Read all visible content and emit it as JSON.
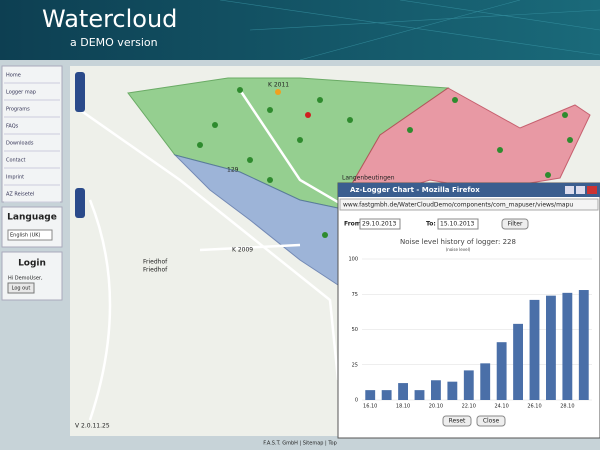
{
  "header": {
    "title": "Watercloud",
    "subtitle": "a DEMO version"
  },
  "menu": [
    "Home",
    "Logger map",
    "Programs",
    "FAQs",
    "Downloads",
    "Contact",
    "Imprint",
    "AZ Reisetel"
  ],
  "language": {
    "title": "Language",
    "selected": "English (UK)"
  },
  "login": {
    "title": "Login",
    "greeting": "Hi DemoUser,",
    "button": "Log out"
  },
  "map": {
    "labels": [
      "K 2011",
      "Langenbeutingen",
      "Friedhof",
      "Friedhof",
      "K 2009",
      "129"
    ],
    "version": "V 2.0.11.25"
  },
  "popup": {
    "window_title": "Az-Logger Chart - Mozilla Firefox",
    "url": "www.fastgmbh.de/WaterCloudDemo/components/com_mapuser/views/mapu",
    "from_label": "From:",
    "from": "29.10.2013",
    "to_label": "To:",
    "to": "15.10.2013",
    "filter": "Filter",
    "reset": "Reset",
    "close": "Close",
    "chart": {
      "type": "bar",
      "title": "Noise level history of logger: 228",
      "subtitle": "(noise level)",
      "categories": [
        "16.10",
        null,
        "18.10",
        null,
        "20.10",
        null,
        "22.10",
        null,
        "24.10",
        null,
        "26.10",
        null,
        "28.10",
        null
      ],
      "values": [
        7,
        7,
        12,
        7,
        14,
        13,
        21,
        26,
        41,
        54,
        71,
        74,
        76,
        78
      ],
      "color": "#4a6fa8",
      "ylim": [
        0,
        100
      ],
      "yticks": [
        0,
        25,
        50,
        75,
        100
      ],
      "grid": true
    }
  },
  "footer": "F.A.S.T. GmbH | Sitemap | Top"
}
